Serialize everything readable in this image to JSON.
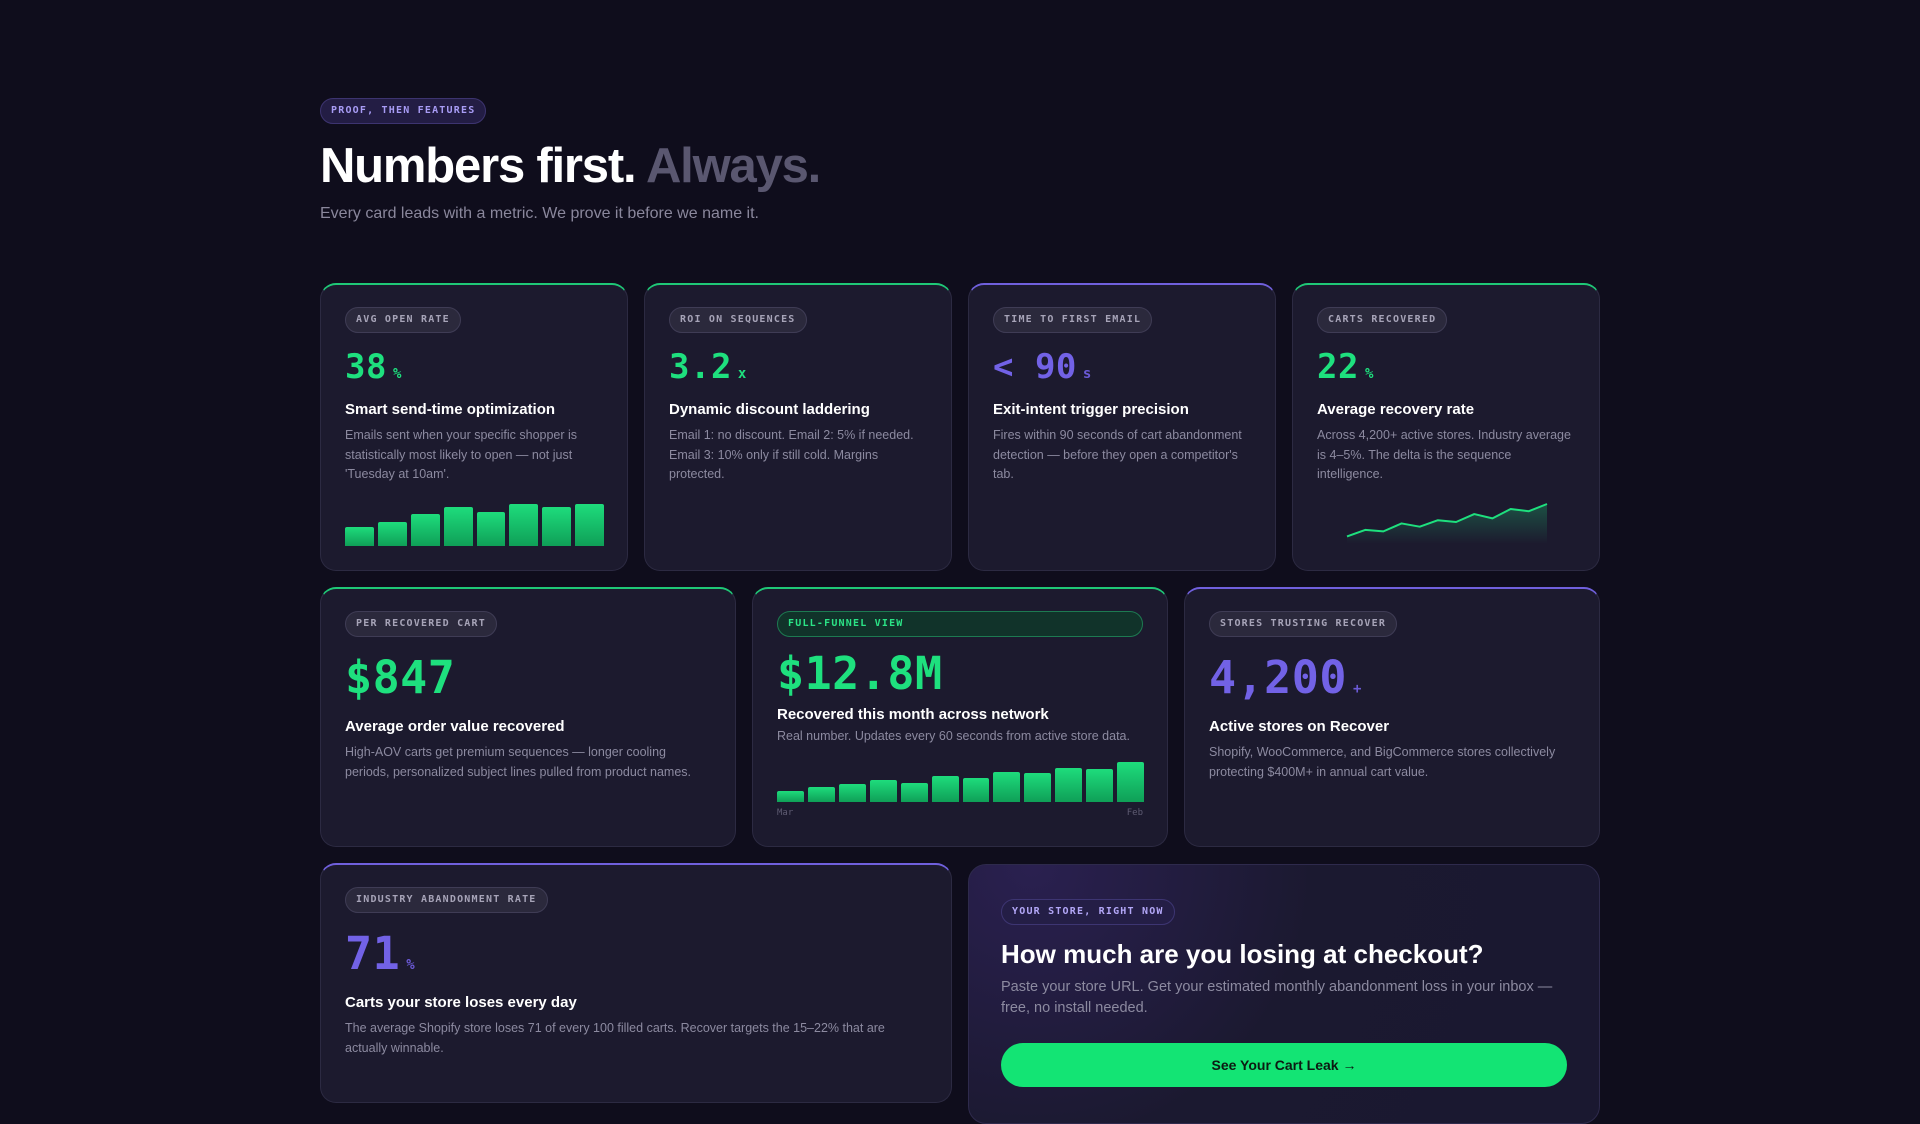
{
  "header": {
    "eyebrow": "PROOF, THEN FEATURES",
    "headline_main": "Numbers first.",
    "headline_muted": "Always.",
    "subhead": "Every card leads with a metric. We prove it before we name it."
  },
  "colors": {
    "background": "#0f0d1c",
    "card": "#1c1a2e",
    "accent_green": "#1ee07e",
    "accent_purple": "#7262e6"
  },
  "cards": {
    "open_rate": {
      "tag": "AVG OPEN RATE",
      "value": "38",
      "unit": "%",
      "title": "Smart send-time optimization",
      "desc": "Emails sent when your specific shopper is statistically most likely to open — not just 'Tuesday at 10am'.",
      "bars": [
        0.46,
        0.56,
        0.75,
        0.92,
        0.8,
        1.0,
        0.92,
        1.0
      ]
    },
    "roi": {
      "tag": "ROI ON SEQUENCES",
      "value": "3.2",
      "unit": "x",
      "title": "Dynamic discount laddering",
      "desc": "Email 1: no discount. Email 2: 5% if needed. Email 3: 10% only if still cold. Margins protected."
    },
    "time_first": {
      "tag": "TIME TO FIRST EMAIL",
      "value": "< 90",
      "unit": "s",
      "title": "Exit-intent trigger precision",
      "desc": "Fires within 90 seconds of cart abandonment detection — before they open a competitor's tab."
    },
    "carts_recovered": {
      "tag": "CARTS RECOVERED",
      "value": "22",
      "unit": "%",
      "title": "Average recovery rate",
      "desc": "Across 4,200+ active stores. Industry average is 4–5%. The delta is the sequence intelligence.",
      "trend": [
        0.1,
        0.28,
        0.24,
        0.46,
        0.37,
        0.55,
        0.5,
        0.72,
        0.6,
        0.86,
        0.8,
        1.0
      ]
    },
    "per_cart": {
      "tag": "PER RECOVERED CART",
      "value": "$847",
      "title": "Average order value recovered",
      "desc": "High-AOV carts get premium sequences — longer cooling periods, personalized subject lines pulled from product names."
    },
    "network": {
      "tag": "FULL-FUNNEL VIEW",
      "value": "$12.8M",
      "title": "Recovered this month across network",
      "desc": "Real number. Updates every 60 seconds from active store data.",
      "bars": [
        0.28,
        0.38,
        0.46,
        0.54,
        0.48,
        0.66,
        0.6,
        0.76,
        0.72,
        0.86,
        0.82,
        1.0
      ],
      "axis_start": "Mar",
      "axis_end": "Feb"
    },
    "stores": {
      "tag": "STORES TRUSTING RECOVER",
      "value": "4,200",
      "unit": "+",
      "title": "Active stores on Recover",
      "desc": "Shopify, WooCommerce, and BigCommerce stores collectively protecting $400M+ in annual cart value."
    },
    "abandonment": {
      "tag": "INDUSTRY ABANDONMENT RATE",
      "value": "71",
      "unit": "%",
      "title": "Carts your store loses every day",
      "desc": "The average Shopify store loses 71 of every 100 filled carts. Recover targets the 15–22% that are actually winnable."
    }
  },
  "cta": {
    "tag": "YOUR STORE, RIGHT NOW",
    "title": "How much are you losing at checkout?",
    "desc": "Paste your store URL. Get your estimated monthly abandonment loss in your inbox — free, no install needed.",
    "button": "See Your Cart Leak →"
  }
}
